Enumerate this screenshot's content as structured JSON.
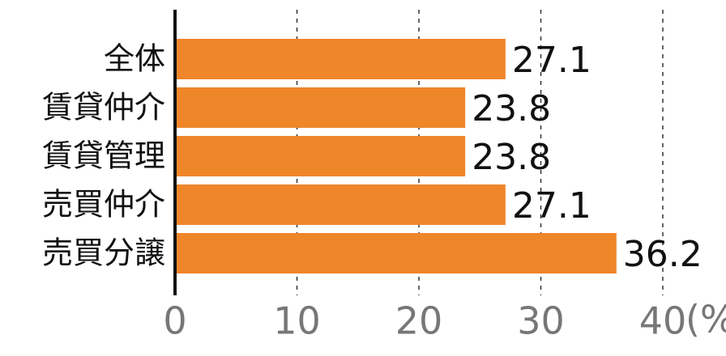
{
  "chart_data": {
    "type": "bar",
    "orientation": "horizontal",
    "categories": [
      "全体",
      "賃貸仲介",
      "賃貸管理",
      "売買仲介",
      "売買分譲"
    ],
    "values": [
      27.1,
      23.8,
      23.8,
      27.1,
      36.2
    ],
    "color": "#f0862a",
    "xlim": [
      0,
      40
    ],
    "xticks": [
      0,
      10,
      20,
      30,
      40
    ],
    "xlabel": "(%)",
    "grid": true
  }
}
